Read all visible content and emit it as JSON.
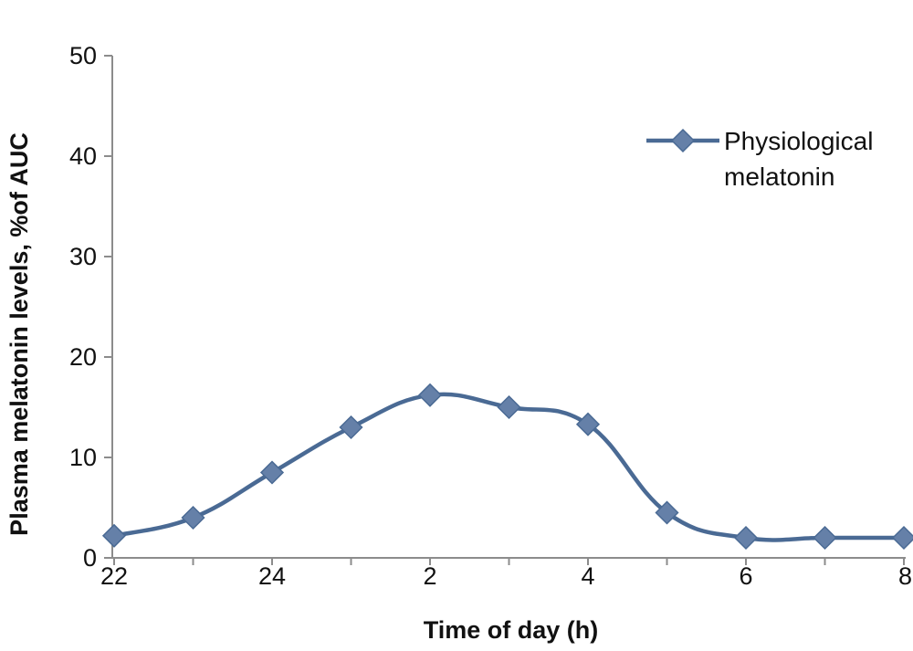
{
  "chart_data": {
    "type": "line",
    "title": "",
    "xlabel": "Time of day (h)",
    "ylabel": "Plasma melatonin levels, %of AUC",
    "ylim": [
      0,
      50
    ],
    "yticks": [
      0,
      10,
      20,
      30,
      40,
      50
    ],
    "xtick_labels": [
      "22",
      "24",
      "2",
      "4",
      "6",
      "8"
    ],
    "x": [
      "22",
      "23",
      "24",
      "1",
      "2",
      "3",
      "4",
      "5",
      "6",
      "7",
      "8"
    ],
    "series": [
      {
        "name": "Physiological melatonin",
        "legend_lines": [
          "Physiological",
          "melatonin"
        ],
        "values": [
          2.2,
          4.0,
          8.5,
          13.0,
          16.2,
          15.0,
          13.3,
          4.5,
          2.0,
          2.0,
          2.0
        ],
        "color": "#4a6a94",
        "marker_color": "#6580a8"
      }
    ],
    "legend_position": "top-right",
    "grid": false
  }
}
